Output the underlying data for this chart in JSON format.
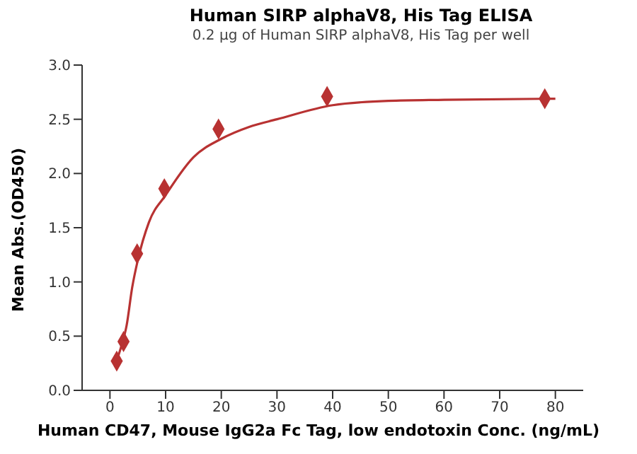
{
  "chart_data": {
    "type": "scatter",
    "title": "Human SIRP alphaV8, His Tag ELISA",
    "subtitle": "0.2 µg of Human SIRP alphaV8, His Tag per well",
    "xlabel": "Human CD47, Mouse IgG2a Fc Tag, low endotoxin Conc. (ng/mL)",
    "ylabel": "Mean Abs.(OD450)",
    "x": [
      1.22,
      2.44,
      4.88,
      9.77,
      19.5,
      39,
      78.1
    ],
    "series": [
      {
        "color": "#b83232",
        "marker": "diamond",
        "values": [
          0.27,
          0.45,
          1.26,
          1.86,
          2.41,
          2.71,
          2.69
        ]
      },
      {
        "type": "line",
        "color": "#b83232",
        "marker": "none",
        "x": [
          1.2,
          2,
          3,
          4,
          5,
          7,
          10,
          15,
          20,
          25,
          30,
          40,
          50,
          60,
          80
        ],
        "values": [
          0.27,
          0.4,
          0.6,
          0.95,
          1.2,
          1.55,
          1.8,
          2.15,
          2.32,
          2.43,
          2.5,
          2.63,
          2.67,
          2.68,
          2.69
        ]
      }
    ],
    "xlim": [
      -5,
      85
    ],
    "xticks": [
      0,
      10,
      20,
      30,
      40,
      50,
      60,
      70,
      80
    ],
    "ylim": [
      0,
      3
    ],
    "yticks": [
      {
        "value": 0,
        "label": "0.0"
      },
      0.5,
      {
        "value": 1,
        "label": "1.0"
      },
      1.5,
      {
        "value": 2,
        "label": "2.0"
      },
      2.5,
      {
        "value": 3,
        "label": "3.0"
      }
    ],
    "grid": false
  }
}
